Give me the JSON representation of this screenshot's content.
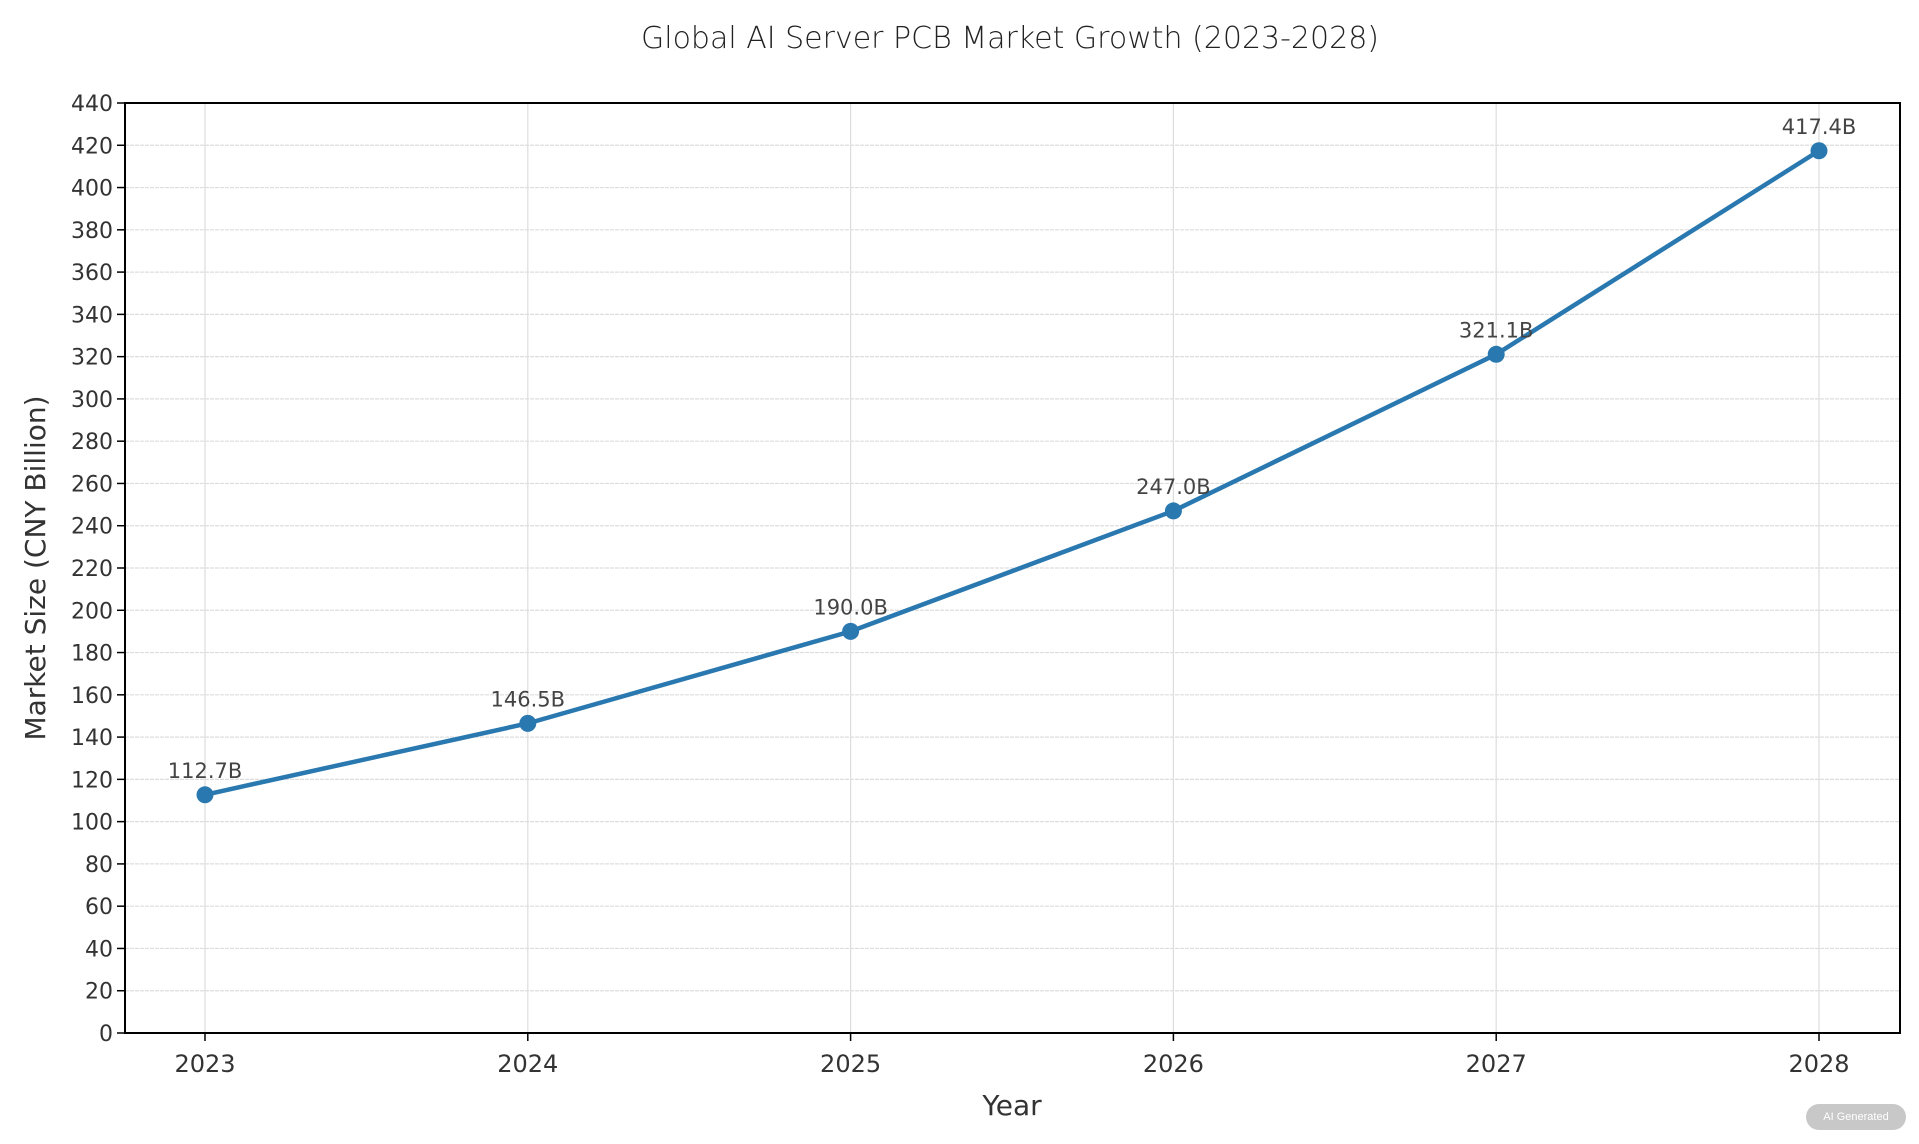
{
  "chart_data": {
    "type": "line",
    "title": "Global AI Server PCB Market Growth (2023-2028)",
    "xlabel": "Year",
    "ylabel": "Market Size (CNY Billion)",
    "categories": [
      "2023",
      "2024",
      "2025",
      "2026",
      "2027",
      "2028"
    ],
    "values": [
      112.7,
      146.5,
      190.0,
      247.0,
      321.1,
      417.4
    ],
    "data_labels": [
      "112.7B",
      "146.5B",
      "190.0B",
      "247.0B",
      "321.1B",
      "417.4B"
    ],
    "ylim": [
      0,
      440
    ],
    "yticks": [
      0,
      20,
      40,
      60,
      80,
      100,
      120,
      140,
      160,
      180,
      200,
      220,
      240,
      260,
      280,
      300,
      320,
      340,
      360,
      380,
      400,
      420,
      440
    ],
    "grid": true,
    "line_color": "#2a78b0"
  },
  "badge": "AI Generated"
}
